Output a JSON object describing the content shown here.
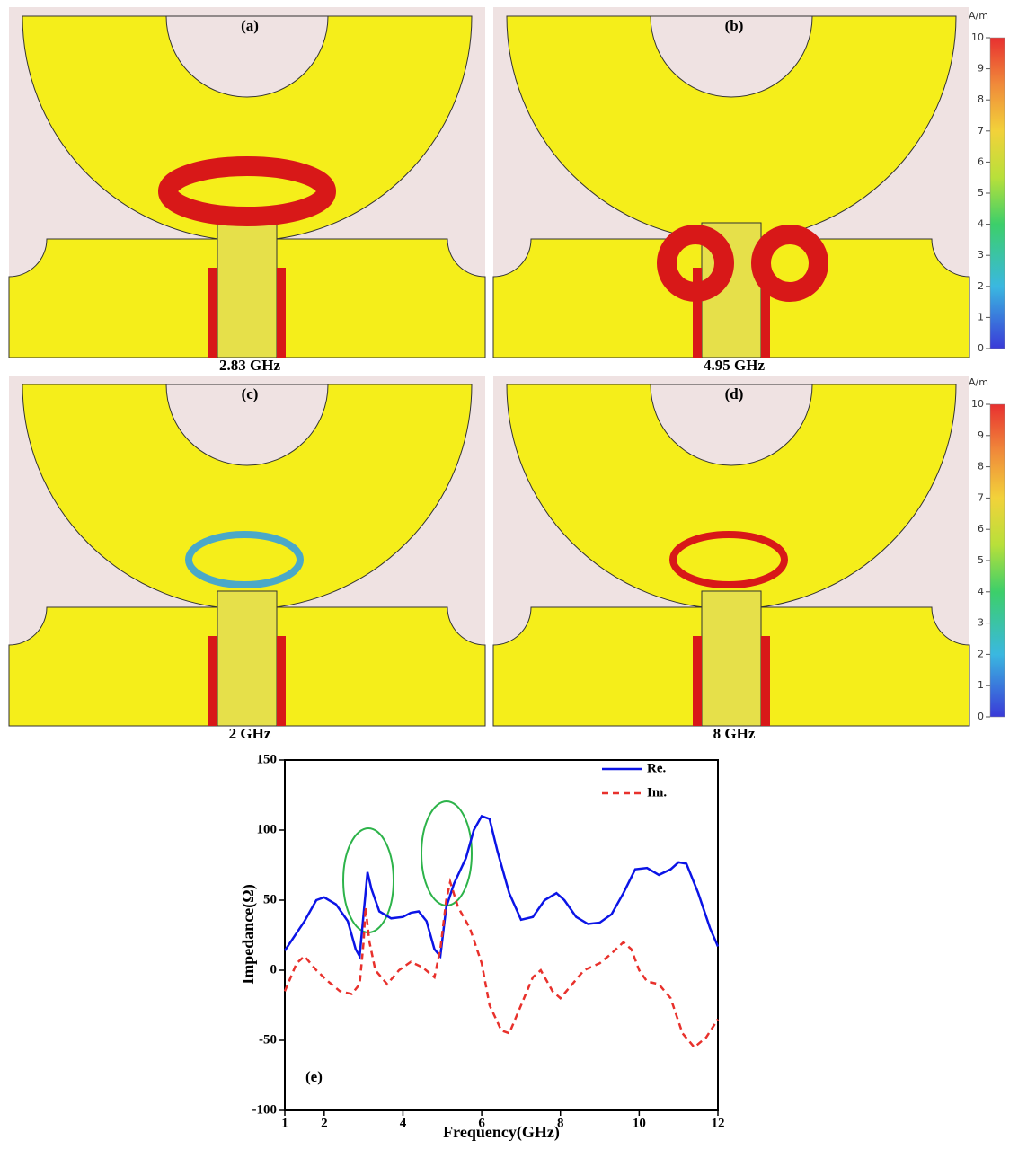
{
  "panels": [
    {
      "label": "(a)",
      "caption": "2.83 GHz"
    },
    {
      "label": "(b)",
      "caption": "4.95 GHz"
    },
    {
      "label": "(c)",
      "caption": "2 GHz"
    },
    {
      "label": "(d)",
      "caption": "8 GHz"
    }
  ],
  "colorbars": [
    {
      "unit": "A/m",
      "lim": [
        0,
        10
      ],
      "ticks": [
        0,
        1,
        2,
        3,
        4,
        5,
        6,
        7,
        8,
        9,
        10
      ]
    },
    {
      "unit": "A/m",
      "lim": [
        0,
        10
      ],
      "ticks": [
        0,
        1,
        2,
        3,
        4,
        5,
        6,
        7,
        8,
        9,
        10
      ]
    }
  ],
  "chart_data": {
    "type": "line",
    "panel_label": "(e)",
    "x_label": "Frequency(GHz)",
    "y_label": "Impedance(Ω)",
    "xlim": [
      1,
      12
    ],
    "xticks": [
      1,
      2,
      4,
      6,
      8,
      10,
      12
    ],
    "ylim": [
      -100,
      150
    ],
    "yticks": [
      -100,
      -50,
      0,
      50,
      100,
      150
    ],
    "legend": "top-right",
    "series": [
      {
        "name": "Re.",
        "color": "#0b14e6",
        "dash": false,
        "x": [
          1,
          1.5,
          1.8,
          2.0,
          2.3,
          2.6,
          2.8,
          2.9,
          3.0,
          3.1,
          3.2,
          3.4,
          3.7,
          4.0,
          4.2,
          4.4,
          4.6,
          4.8,
          4.95,
          5.1,
          5.3,
          5.6,
          5.8,
          6.0,
          6.2,
          6.4,
          6.7,
          7.0,
          7.3,
          7.6,
          7.9,
          8.1,
          8.4,
          8.7,
          9.0,
          9.3,
          9.6,
          9.9,
          10.2,
          10.5,
          10.8,
          11.0,
          11.2,
          11.5,
          11.8,
          12
        ],
        "values": [
          14,
          35,
          50,
          52,
          47,
          35,
          15,
          10,
          40,
          70,
          58,
          42,
          37,
          38,
          41,
          42,
          35,
          15,
          10,
          45,
          62,
          80,
          100,
          110,
          108,
          85,
          55,
          36,
          38,
          50,
          55,
          50,
          38,
          33,
          34,
          40,
          55,
          72,
          73,
          68,
          72,
          77,
          76,
          55,
          30,
          17
        ]
      },
      {
        "name": "Im.",
        "color": "#e8312c",
        "dash": true,
        "x": [
          1,
          1.3,
          1.5,
          1.8,
          2.1,
          2.4,
          2.7,
          2.9,
          3.0,
          3.05,
          3.15,
          3.3,
          3.6,
          3.9,
          4.2,
          4.5,
          4.8,
          4.95,
          5.1,
          5.2,
          5.4,
          5.7,
          6.0,
          6.2,
          6.5,
          6.7,
          7.0,
          7.3,
          7.5,
          7.8,
          8.0,
          8.3,
          8.6,
          9.0,
          9.3,
          9.6,
          9.8,
          10.0,
          10.2,
          10.5,
          10.8,
          11.1,
          11.4,
          11.7,
          12
        ],
        "values": [
          -15,
          5,
          10,
          0,
          -8,
          -15,
          -17,
          -10,
          20,
          45,
          20,
          0,
          -10,
          0,
          6,
          2,
          -5,
          15,
          50,
          63,
          45,
          30,
          5,
          -25,
          -43,
          -45,
          -25,
          -5,
          0,
          -15,
          -20,
          -10,
          0,
          5,
          12,
          20,
          15,
          0,
          -8,
          -10,
          -20,
          -45,
          -55,
          -48,
          -35
        ]
      }
    ]
  }
}
